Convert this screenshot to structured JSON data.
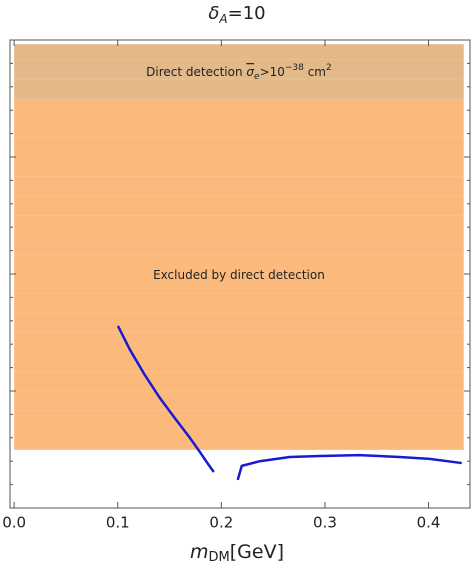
{
  "chart_data": {
    "type": "line",
    "title": {
      "symbol": "δ",
      "sub": "A",
      "rest": "=10"
    },
    "x_label": {
      "symbol": "m",
      "sub": "DM",
      "rest": "[GeV]"
    },
    "xlim": [
      -0.004,
      0.44
    ],
    "xticks": [
      {
        "value": 0,
        "label": "0.0"
      },
      0.1,
      0.2,
      0.3,
      0.4
    ],
    "ylim": [
      0,
      1
    ],
    "regions": [
      {
        "xmin": 0,
        "xmax": 0.434,
        "ymin": 0.872,
        "ymax": 0.991,
        "color": "#e3b98a",
        "label": {
          "text": "Direct detection ",
          "symbol": "σ",
          "sub": "e",
          "mid": ">10",
          "exp": "−38",
          "unit": " cm",
          "unit_exp": "2"
        }
      },
      {
        "xmin": 0,
        "xmax": 0.434,
        "ymin": 0.124,
        "ymax": 0.872,
        "color": "#fcb97c",
        "label": {
          "text": "Excluded by direct detection"
        }
      }
    ],
    "series": [
      {
        "color": "#1a1ad0",
        "x": [
          0.1002,
          0.1118,
          0.1262,
          0.1407,
          0.1551,
          0.1696,
          0.1792,
          0.1859,
          0.1927
        ],
        "values": [
          0.389,
          0.338,
          0.284,
          0.235,
          0.192,
          0.15,
          0.12,
          0.098,
          0.077
        ]
      },
      {
        "color": "#1a1ad0",
        "x": [
          0.2158,
          0.2197,
          0.237,
          0.266,
          0.295,
          0.333,
          0.372,
          0.401,
          0.432
        ],
        "values": [
          0.06,
          0.09,
          0.1,
          0.109,
          0.111,
          0.113,
          0.109,
          0.105,
          0.096
        ]
      }
    ]
  }
}
